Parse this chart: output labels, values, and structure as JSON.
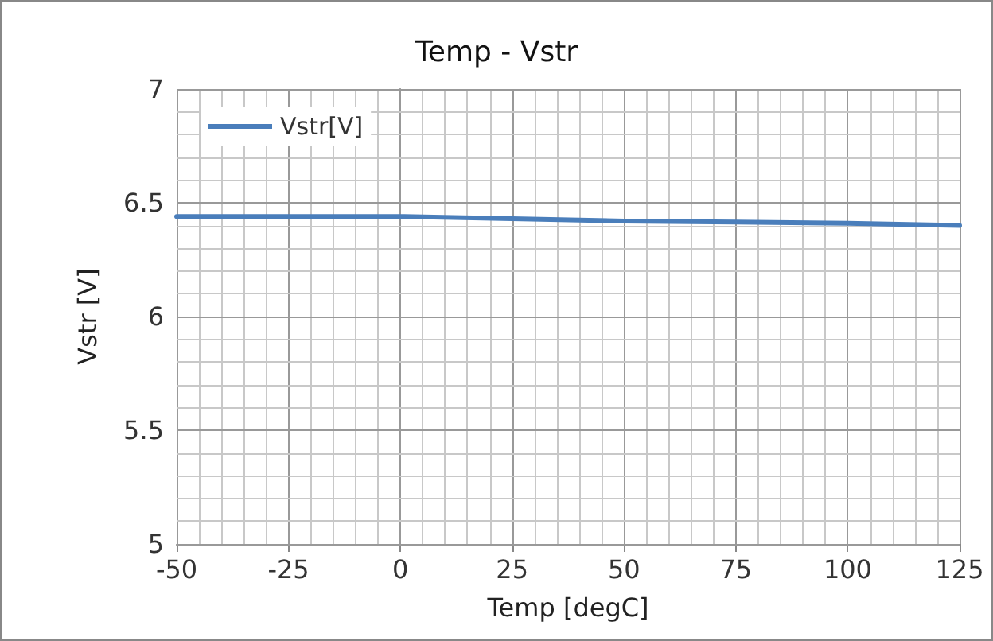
{
  "chart_data": {
    "type": "line",
    "title": "Temp - Vstr",
    "xlabel": "Temp [degC]",
    "ylabel": "Vstr [V]",
    "x": [
      -50,
      -25,
      0,
      25,
      50,
      75,
      100,
      125
    ],
    "series": [
      {
        "name": "Vstr[V]",
        "color": "#4a7ebb",
        "values": [
          6.44,
          6.44,
          6.44,
          6.43,
          6.42,
          6.415,
          6.41,
          6.4
        ]
      }
    ],
    "xlim": [
      -50,
      125
    ],
    "xticks": [
      -50,
      {
        "value": -45,
        "label": null
      },
      {
        "value": -40,
        "label": null
      },
      {
        "value": -35,
        "label": null
      },
      {
        "value": -30,
        "label": null
      },
      -25,
      {
        "value": -20,
        "label": null
      },
      {
        "value": -15,
        "label": null
      },
      {
        "value": -10,
        "label": null
      },
      {
        "value": -5,
        "label": null
      },
      0,
      {
        "value": 5,
        "label": null
      },
      {
        "value": 10,
        "label": null
      },
      {
        "value": 15,
        "label": null
      },
      {
        "value": 20,
        "label": null
      },
      25,
      {
        "value": 30,
        "label": null
      },
      {
        "value": 35,
        "label": null
      },
      {
        "value": 40,
        "label": null
      },
      {
        "value": 45,
        "label": null
      },
      50,
      {
        "value": 55,
        "label": null
      },
      {
        "value": 60,
        "label": null
      },
      {
        "value": 65,
        "label": null
      },
      {
        "value": 70,
        "label": null
      },
      75,
      {
        "value": 80,
        "label": null
      },
      {
        "value": 85,
        "label": null
      },
      {
        "value": 90,
        "label": null
      },
      {
        "value": 95,
        "label": null
      },
      100,
      {
        "value": 105,
        "label": null
      },
      {
        "value": 110,
        "label": null
      },
      {
        "value": 115,
        "label": null
      },
      {
        "value": 120,
        "label": null
      },
      125
    ],
    "ylim": [
      5,
      7
    ],
    "yticks": [
      5,
      {
        "value": 5.1,
        "label": null
      },
      {
        "value": 5.2,
        "label": null
      },
      {
        "value": 5.3,
        "label": null
      },
      {
        "value": 5.4,
        "label": null
      },
      5.5,
      {
        "value": 5.6,
        "label": null
      },
      {
        "value": 5.7,
        "label": null
      },
      {
        "value": 5.8,
        "label": null
      },
      {
        "value": 5.9,
        "label": null
      },
      6,
      {
        "value": 6.1,
        "label": null
      },
      {
        "value": 6.2,
        "label": null
      },
      {
        "value": 6.3,
        "label": null
      },
      {
        "value": 6.4,
        "label": null
      },
      6.5,
      {
        "value": 6.6,
        "label": null
      },
      {
        "value": 6.7,
        "label": null
      },
      {
        "value": 6.8,
        "label": null
      },
      {
        "value": 6.9,
        "label": null
      },
      7
    ],
    "grid": true,
    "legend": "top left",
    "marker": "none",
    "line_style": "solid"
  }
}
